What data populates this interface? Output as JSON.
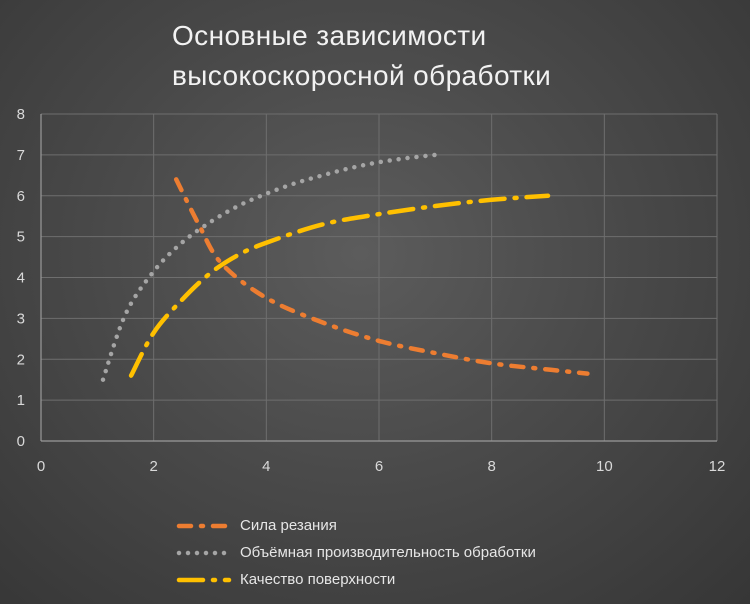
{
  "chart_data": {
    "type": "line",
    "title_lines": [
      "Основные зависимости",
      "высокоскоросной  обработки"
    ],
    "xlabel": "",
    "ylabel": "",
    "xlim": [
      0,
      12
    ],
    "ylim": [
      0,
      8
    ],
    "x_ticks": [
      "0",
      "2",
      "4",
      "6",
      "8",
      "10",
      "12"
    ],
    "y_ticks": [
      "0",
      "1",
      "2",
      "3",
      "4",
      "5",
      "6",
      "7",
      "8"
    ],
    "grid": true,
    "legend_position": "bottom",
    "series": [
      {
        "name": "Сила резания",
        "color": "#ED7D31",
        "style": "dash-dot",
        "x": [
          2.4,
          2.8,
          3.2,
          4.0,
          5.0,
          6.0,
          7.0,
          8.0,
          9.0,
          9.7
        ],
        "y": [
          6.4,
          5.3,
          4.35,
          3.5,
          2.9,
          2.45,
          2.15,
          1.9,
          1.75,
          1.65
        ]
      },
      {
        "name": "Объёмная производительность обработки",
        "color": "#A5A5A5",
        "style": "dotted",
        "x": [
          1.1,
          1.5,
          2.0,
          2.5,
          3.0,
          3.5,
          4.0,
          4.5,
          5.0,
          5.5,
          6.0,
          6.5,
          7.0
        ],
        "y": [
          1.5,
          3.1,
          4.15,
          4.85,
          5.35,
          5.75,
          6.05,
          6.3,
          6.5,
          6.68,
          6.82,
          6.92,
          7.0
        ]
      },
      {
        "name": "Качество поверхности",
        "color": "#FFC000",
        "style": "long-dash-dot",
        "x": [
          1.6,
          2.0,
          2.5,
          3.0,
          3.5,
          4.0,
          5.0,
          6.0,
          7.0,
          8.0,
          9.0
        ],
        "y": [
          1.6,
          2.65,
          3.45,
          4.1,
          4.55,
          4.85,
          5.3,
          5.55,
          5.75,
          5.9,
          6.0
        ]
      }
    ]
  }
}
